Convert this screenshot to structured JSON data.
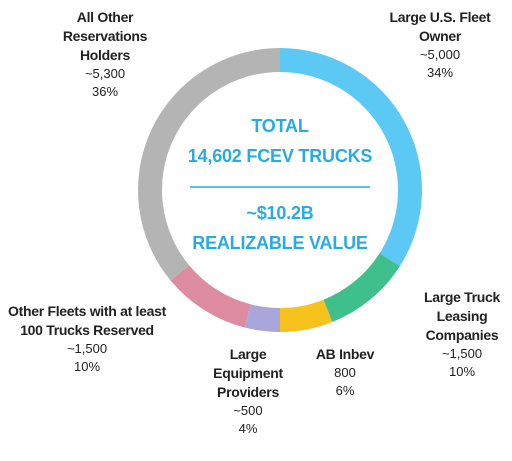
{
  "chart_data": {
    "type": "donut",
    "center_text": [
      "TOTAL",
      "14,602 FCEV TRUCKS",
      "~$10.2B",
      "REALIZABLE VALUE"
    ],
    "center_color": "#29abe2",
    "categories": [
      "Large U.S. Fleet Owner",
      "Large Truck Leasing Companies",
      "AB Inbev",
      "Large Equipment Providers",
      "Other Fleets with at least 100 Trucks Reserved",
      "All Other Reservations Holders"
    ],
    "amounts": [
      "~5,000",
      "~1,500",
      "800",
      "~500",
      "~1,500",
      "~5,300"
    ],
    "values": [
      34,
      10,
      6,
      4,
      10,
      36
    ],
    "value_labels": [
      "34%",
      "10%",
      "6%",
      "4%",
      "10%",
      "36%"
    ],
    "colors": [
      "#5cc9f5",
      "#3fbf8b",
      "#f8c21d",
      "#aaa6da",
      "#dd8ba1",
      "#b4b4b4"
    ]
  }
}
